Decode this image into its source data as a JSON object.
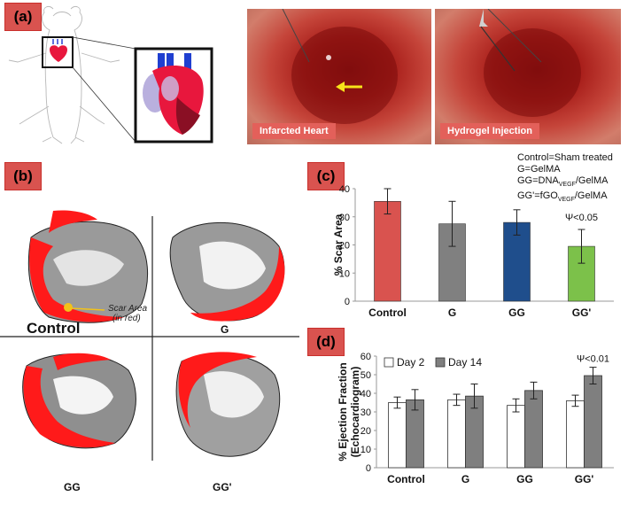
{
  "panels": {
    "a": {
      "label": "(a)",
      "photo_left_caption": "Infarcted Heart",
      "photo_right_caption": "Hydrogel Injection"
    },
    "b": {
      "label": "(b)",
      "quadrants": [
        "Control",
        "G",
        "GG",
        "GG'"
      ],
      "scar_area_line1": "Scar Area",
      "scar_area_line2": "(in red)"
    },
    "c": {
      "label": "(c)",
      "legend": {
        "line1": "Control=Sham treated",
        "line2": "G=GelMA",
        "line3_prefix": "GG=DNA",
        "line3_sub": "VEGF",
        "line3_suffix": "/GelMA",
        "line4_prefix": "GG'=fGO",
        "line4_sub": "VEGF",
        "line4_suffix": "/GelMA"
      },
      "annotation": "Ψ<0.05"
    },
    "d": {
      "label": "(d)",
      "annotation": "Ψ<0.01"
    }
  },
  "colors": {
    "control_bar": "#d9534f",
    "g_bar": "#808080",
    "gg_bar": "#1f4e8c",
    "ggp_bar": "#7cc14a",
    "day14_bar": "#7f7f7f",
    "scar_red": "#ff1a1a"
  },
  "chart_data": [
    {
      "type": "bar",
      "id": "scar-area",
      "categories": [
        "Control",
        "G",
        "GG",
        "GG'"
      ],
      "values": [
        35.5,
        27.5,
        28,
        19.5
      ],
      "errors": [
        4.5,
        8,
        4.5,
        6
      ],
      "ylabel": "% Scar Area",
      "ylim": [
        0,
        40
      ],
      "yticks": [
        "0",
        "10",
        "20",
        "30",
        "40"
      ]
    },
    {
      "type": "bar",
      "id": "ejection-fraction",
      "categories": [
        "Control",
        "G",
        "GG",
        "GG'"
      ],
      "series": [
        {
          "name": "Day 2",
          "values": [
            35,
            36.5,
            33.5,
            36
          ],
          "errors": [
            3,
            3,
            3.5,
            3
          ]
        },
        {
          "name": "Day 14",
          "values": [
            36.5,
            38.5,
            41.5,
            49.5
          ],
          "errors": [
            5.5,
            6.5,
            4.5,
            4.5
          ]
        }
      ],
      "ylabel_line1": "% Ejection Fraction",
      "ylabel_line2": "(Echocardiogram)",
      "ylim": [
        0,
        60
      ],
      "yticks": [
        "0",
        "10",
        "20",
        "30",
        "40",
        "50",
        "60"
      ]
    }
  ]
}
